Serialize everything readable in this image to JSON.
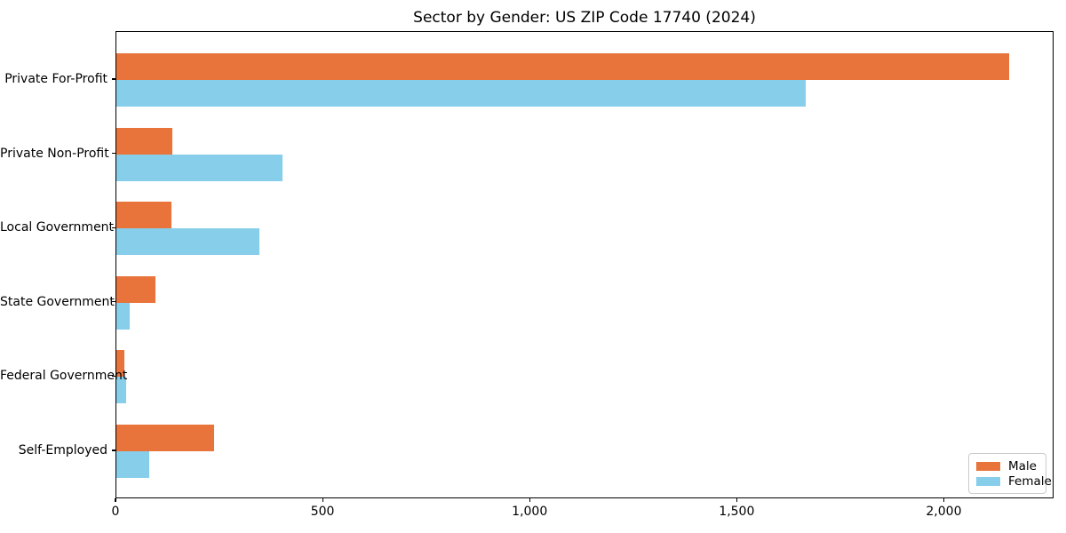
{
  "chart_data": {
    "type": "bar",
    "orientation": "horizontal",
    "title": "Sector by Gender: US ZIP Code 17740 (2024)",
    "xlabel": "",
    "ylabel": "",
    "categories": [
      "Private For-Profit",
      "Private Non-Profit",
      "Local Government",
      "State Government",
      "Federal Government",
      "Self-Employed"
    ],
    "series": [
      {
        "name": "Male",
        "color": "#e8743b",
        "values": [
          2155,
          135,
          132,
          94,
          20,
          235
        ]
      },
      {
        "name": "Female",
        "color": "#87ceeb",
        "values": [
          1665,
          402,
          346,
          33,
          24,
          79
        ]
      }
    ],
    "xlim": [
      0,
      2265
    ],
    "xticks": [
      0,
      500,
      1000,
      1500,
      2000
    ],
    "xtick_labels": [
      "0",
      "500",
      "1,000",
      "1,500",
      "2,000"
    ],
    "legend_position": "lower right",
    "grid": false,
    "background_color": "#ffffff",
    "text_color": "#000000"
  }
}
